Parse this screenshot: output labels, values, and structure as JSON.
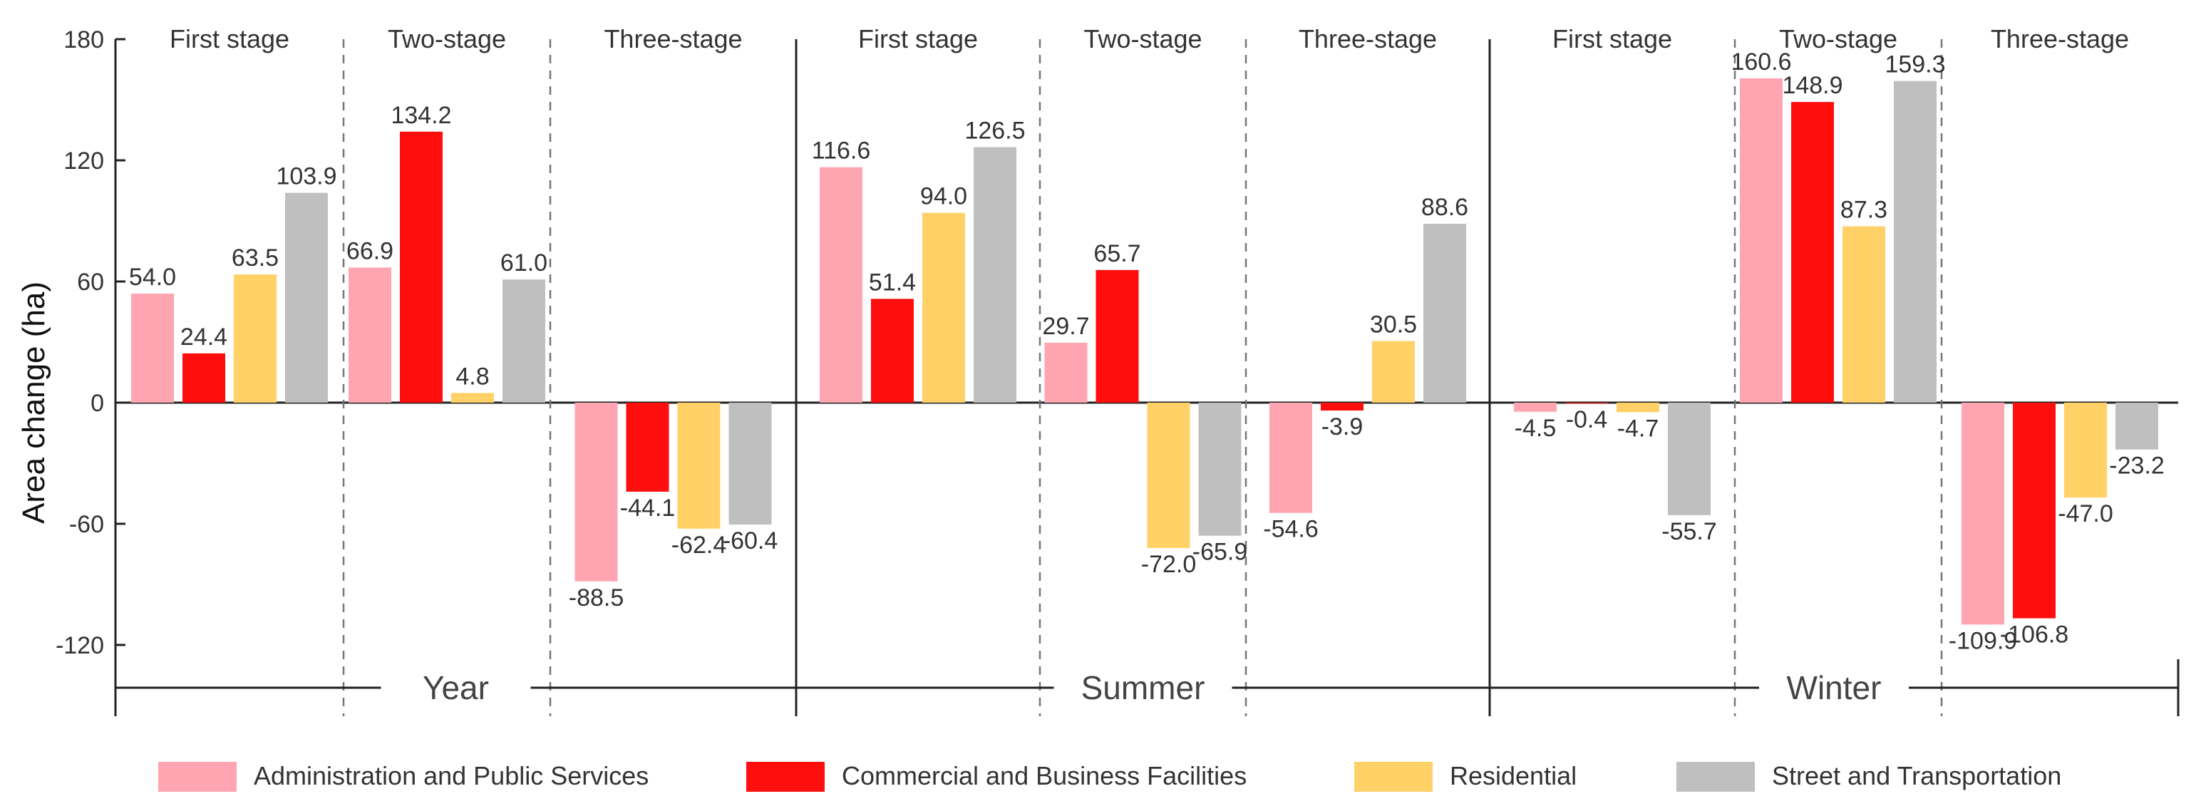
{
  "chart_data": {
    "type": "bar",
    "ylabel": "Area change (ha)",
    "ylim": [
      -150,
      180
    ],
    "yticks": [
      -120,
      -60,
      0,
      60,
      120,
      180
    ],
    "seasons": [
      "Year",
      "Summer",
      "Winter"
    ],
    "stages": [
      "First stage",
      "Two-stage",
      "Three-stage"
    ],
    "series": [
      {
        "name": "Administration and Public Services",
        "color": "#FFA5B2"
      },
      {
        "name": "Commercial and Business Facilities",
        "color": "#FF0E0E"
      },
      {
        "name": "Residential",
        "color": "#FFD166"
      },
      {
        "name": "Street and Transportation",
        "color": "#C0BFBF"
      }
    ],
    "values": [
      [
        [
          54.0,
          24.4,
          63.5,
          103.9
        ],
        [
          66.9,
          134.2,
          4.8,
          61.0
        ],
        [
          -88.5,
          -44.1,
          -62.4,
          -60.4
        ]
      ],
      [
        [
          116.6,
          51.4,
          94.0,
          126.5
        ],
        [
          29.7,
          65.7,
          -72.0,
          -65.9
        ],
        [
          -54.6,
          -3.9,
          30.5,
          88.6
        ]
      ],
      [
        [
          -4.5,
          -0.4,
          -4.7,
          -55.7
        ],
        [
          160.6,
          148.9,
          87.3,
          159.3
        ],
        [
          -109.9,
          -106.8,
          -47.0,
          -23.2
        ]
      ]
    ],
    "labels": [
      [
        [
          "54.0",
          "24.4",
          "63.5",
          "103.9"
        ],
        [
          "66.9",
          "134.2",
          "4.8",
          "61.0"
        ],
        [
          "-88.5",
          "-44.1",
          "-62.4",
          "-60.4"
        ]
      ],
      [
        [
          "116.6",
          "51.4",
          "94.0",
          "126.5"
        ],
        [
          "29.7",
          "65.7",
          "-72.0",
          "-65.9"
        ],
        [
          "-54.6",
          "-3.9",
          "30.5",
          "88.6"
        ]
      ],
      [
        [
          "-4.5",
          "-0.4",
          "-4.7",
          "-55.7"
        ],
        [
          "160.6",
          "148.9",
          "87.3",
          "159.3"
        ],
        [
          "-109.9",
          "-106.8",
          "-47.0",
          "-23.2"
        ]
      ]
    ]
  }
}
